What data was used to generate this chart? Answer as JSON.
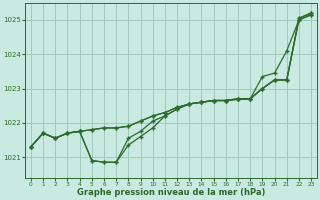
{
  "xlabel": "Graphe pression niveau de la mer (hPa)",
  "x": [
    0,
    1,
    2,
    3,
    4,
    5,
    6,
    7,
    8,
    9,
    10,
    11,
    12,
    13,
    14,
    15,
    16,
    17,
    18,
    19,
    20,
    21,
    22,
    23
  ],
  "line1": [
    1021.3,
    1021.7,
    1021.55,
    1021.7,
    1021.75,
    1021.8,
    1021.85,
    1021.85,
    1021.9,
    1022.05,
    1022.2,
    1022.3,
    1022.45,
    1022.55,
    1022.6,
    1022.65,
    1022.65,
    1022.7,
    1022.7,
    1023.0,
    1023.25,
    1023.25,
    1025.05,
    1025.2
  ],
  "line2": [
    1021.3,
    1021.7,
    1021.55,
    1021.7,
    1021.75,
    1020.9,
    1020.85,
    1020.85,
    1021.55,
    1021.75,
    1022.05,
    1022.2,
    1022.4,
    1022.55,
    1022.6,
    1022.65,
    1022.65,
    1022.7,
    1022.7,
    1023.0,
    1023.25,
    1023.25,
    1025.05,
    1025.2
  ],
  "line3": [
    1021.3,
    1021.7,
    1021.55,
    1021.7,
    1021.75,
    1021.8,
    1021.85,
    1021.85,
    1021.9,
    1022.05,
    1022.2,
    1022.3,
    1022.45,
    1022.55,
    1022.6,
    1022.65,
    1022.65,
    1022.7,
    1022.7,
    1023.35,
    1023.45,
    1024.1,
    1025.0,
    1025.15
  ],
  "line4": [
    1021.3,
    1021.7,
    1021.55,
    1021.7,
    1021.75,
    1020.9,
    1020.85,
    1020.85,
    1021.35,
    1021.6,
    1021.85,
    1022.2,
    1022.4,
    1022.55,
    1022.6,
    1022.65,
    1022.65,
    1022.68,
    1022.7,
    1023.0,
    1023.25,
    1023.25,
    1025.0,
    1025.15
  ],
  "line_color": "#2d6a2d",
  "bg_color": "#c8eae0",
  "grid_color": "#a0c8bc",
  "ylim": [
    1020.4,
    1025.5
  ],
  "yticks": [
    1021,
    1022,
    1023,
    1024,
    1025
  ],
  "xticks": [
    0,
    1,
    2,
    3,
    4,
    5,
    6,
    7,
    8,
    9,
    10,
    11,
    12,
    13,
    14,
    15,
    16,
    17,
    18,
    19,
    20,
    21,
    22,
    23
  ]
}
